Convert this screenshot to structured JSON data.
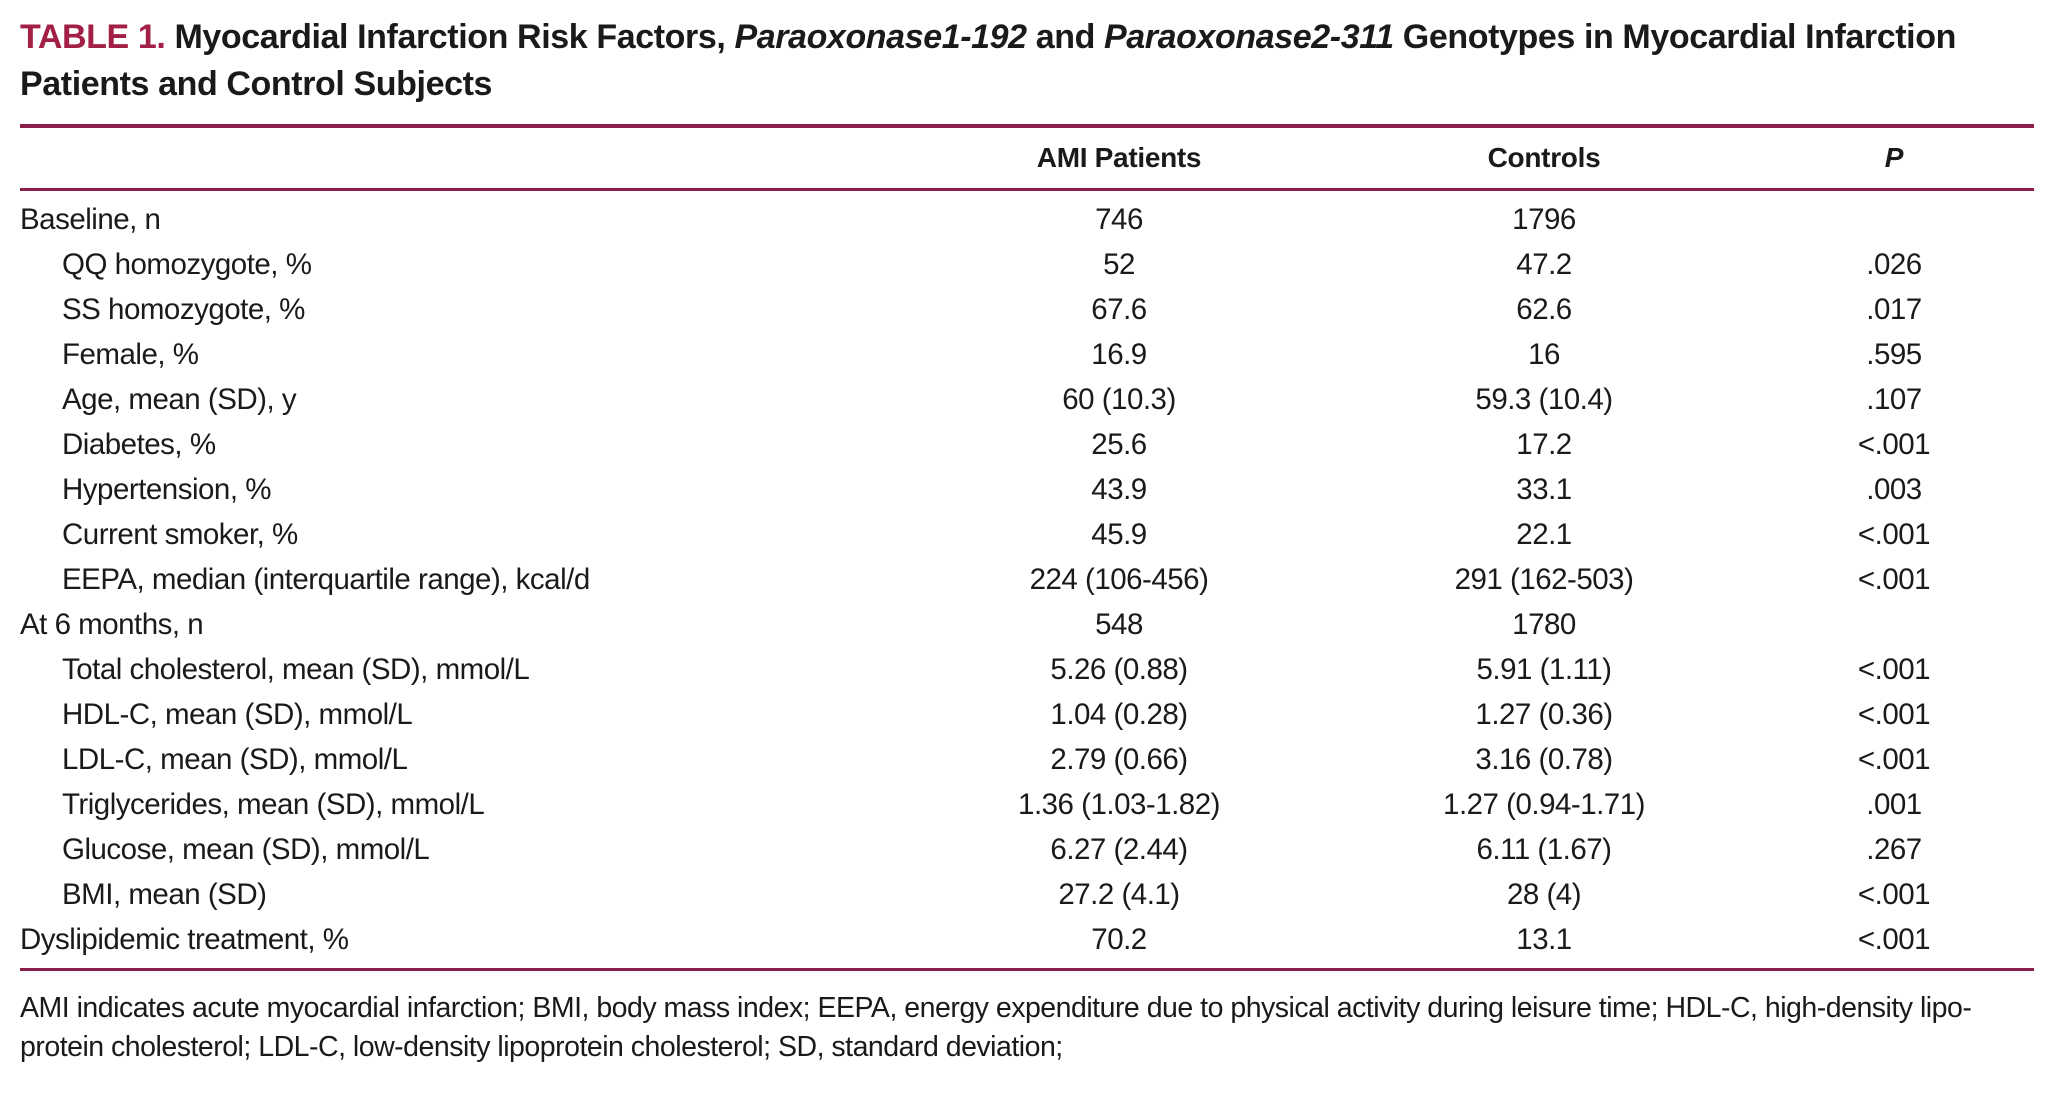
{
  "colors": {
    "accent_title": "#a22045",
    "rule": "#8a1f4c",
    "text": "#1a1a1a"
  },
  "title": {
    "table_number": "TABLE 1.",
    "segment_1": " Myocardial Infarction Risk Factors, ",
    "gene_1": "Paraoxonase1-192",
    "segment_2": " and ",
    "gene_2": "Paraoxonase2-311",
    "segment_3": " Genotypes in Myocardial Infarction Patients and Control Subjects"
  },
  "table": {
    "columns": {
      "label": "",
      "ami": "AMI Patients",
      "controls": "Controls",
      "p": "P"
    },
    "rows": [
      {
        "label": "Baseline, n",
        "indent": false,
        "ami": "746",
        "controls": "1796",
        "p": ""
      },
      {
        "label": "QQ homozygote, %",
        "indent": true,
        "ami": "52",
        "controls": "47.2",
        "p": ".026"
      },
      {
        "label": "SS homozygote, %",
        "indent": true,
        "ami": "67.6",
        "controls": "62.6",
        "p": ".017"
      },
      {
        "label": "Female, %",
        "indent": true,
        "ami": "16.9",
        "controls": "16",
        "p": ".595"
      },
      {
        "label": "Age, mean (SD), y",
        "indent": true,
        "ami": "60 (10.3)",
        "controls": "59.3 (10.4)",
        "p": ".107"
      },
      {
        "label": "Diabetes, %",
        "indent": true,
        "ami": "25.6",
        "controls": "17.2",
        "p": "<.001"
      },
      {
        "label": "Hypertension, %",
        "indent": true,
        "ami": "43.9",
        "controls": "33.1",
        "p": ".003"
      },
      {
        "label": "Current smoker, %",
        "indent": true,
        "ami": "45.9",
        "controls": "22.1",
        "p": "<.001"
      },
      {
        "label": "EEPA, median (interquartile range), kcal/d",
        "indent": true,
        "ami": "224 (106-456)",
        "controls": "291 (162-503)",
        "p": "<.001"
      },
      {
        "label": "At 6 months, n",
        "indent": false,
        "ami": "548",
        "controls": "1780",
        "p": ""
      },
      {
        "label": "Total cholesterol, mean (SD), mmol/L",
        "indent": true,
        "ami": "5.26 (0.88)",
        "controls": "5.91 (1.11)",
        "p": "<.001"
      },
      {
        "label": "HDL-C, mean (SD), mmol/L",
        "indent": true,
        "ami": "1.04 (0.28)",
        "controls": "1.27 (0.36)",
        "p": "<.001"
      },
      {
        "label": "LDL-C, mean (SD), mmol/L",
        "indent": true,
        "ami": "2.79 (0.66)",
        "controls": "3.16 (0.78)",
        "p": "<.001"
      },
      {
        "label": "Triglycerides, mean (SD), mmol/L",
        "indent": true,
        "ami": "1.36 (1.03-1.82)",
        "controls": "1.27 (0.94-1.71)",
        "p": ".001"
      },
      {
        "label": "Glucose, mean (SD), mmol/L",
        "indent": true,
        "ami": "6.27 (2.44)",
        "controls": "6.11 (1.67)",
        "p": ".267"
      },
      {
        "label": "BMI, mean (SD)",
        "indent": true,
        "ami": "27.2 (4.1)",
        "controls": "28 (4)",
        "p": "<.001"
      },
      {
        "label": "Dyslipidemic treatment, %",
        "indent": false,
        "ami": "70.2",
        "controls": "13.1",
        "p": "<.001"
      }
    ]
  },
  "footnote": {
    "line_1": "AMI indicates acute myocardial infarction; BMI, body mass index; EEPA, energy expenditure due to physical activity during leisure time; HDL-C, high-density lipo-",
    "line_2": "protein cholesterol; LDL-C, low-density lipoprotein cholesterol; SD, standard deviation;"
  }
}
